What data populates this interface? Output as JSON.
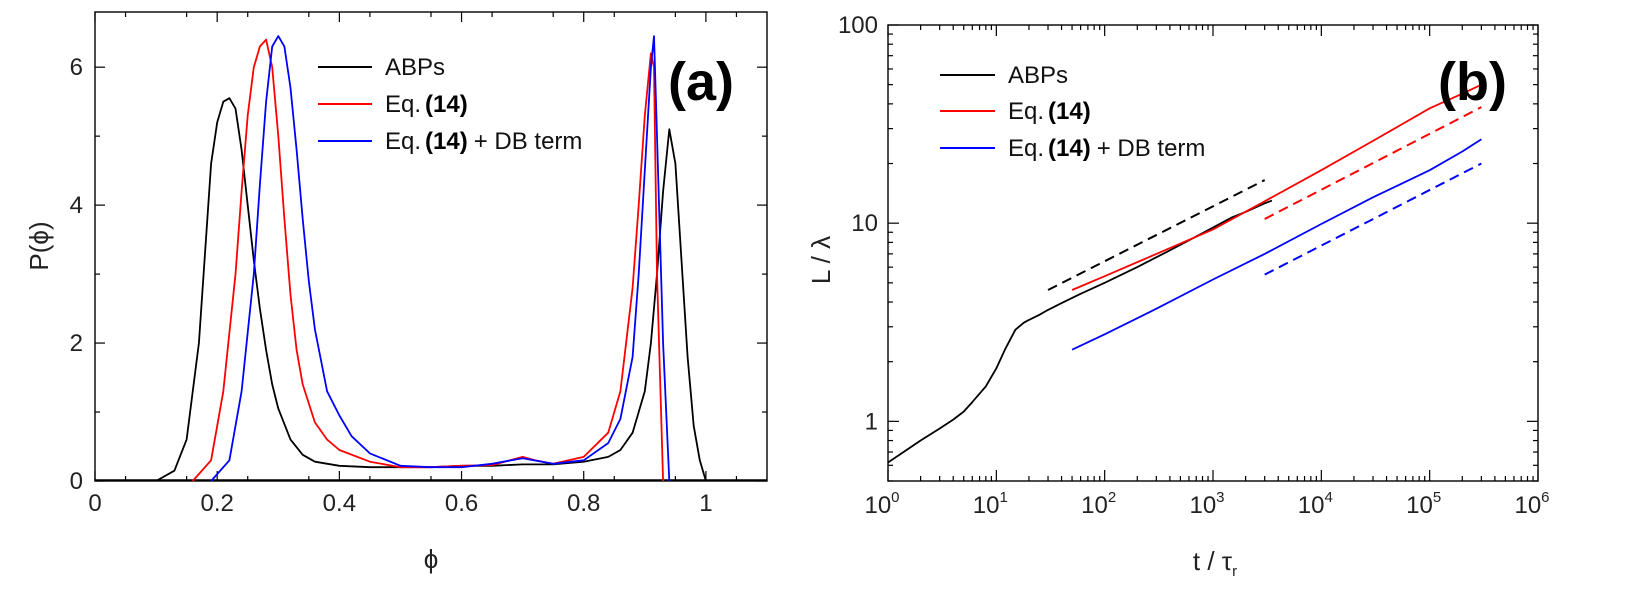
{
  "chart_data": [
    {
      "panel": "(a)",
      "type": "line",
      "xlabel": "ϕ",
      "ylabel": "P(ϕ)",
      "xlim": [
        0,
        1.1
      ],
      "ylim": [
        0,
        6.8
      ],
      "xticks": [
        0,
        0.2,
        0.4,
        0.6,
        0.8,
        1
      ],
      "xtick_labels": [
        "0",
        "0.2",
        "0.4",
        "0.6",
        "0.8",
        "1"
      ],
      "yticks": [
        0,
        2,
        4,
        6
      ],
      "ytick_labels": [
        "0",
        "2",
        "4",
        "6"
      ],
      "legend_position": "top-center",
      "series": [
        {
          "name": "ABPs",
          "color": "#000000",
          "x": [
            0.1,
            0.13,
            0.15,
            0.17,
            0.18,
            0.19,
            0.2,
            0.21,
            0.22,
            0.23,
            0.24,
            0.25,
            0.26,
            0.27,
            0.28,
            0.29,
            0.3,
            0.32,
            0.34,
            0.36,
            0.4,
            0.45,
            0.5,
            0.55,
            0.6,
            0.65,
            0.7,
            0.75,
            0.8,
            0.84,
            0.86,
            0.88,
            0.9,
            0.91,
            0.92,
            0.93,
            0.94,
            0.95,
            0.96,
            0.97,
            0.98,
            0.99,
            1.0
          ],
          "y": [
            0.0,
            0.15,
            0.6,
            2.0,
            3.3,
            4.6,
            5.2,
            5.5,
            5.55,
            5.4,
            4.8,
            4.0,
            3.2,
            2.5,
            1.9,
            1.4,
            1.05,
            0.6,
            0.38,
            0.28,
            0.22,
            0.2,
            0.2,
            0.2,
            0.22,
            0.22,
            0.24,
            0.24,
            0.28,
            0.35,
            0.45,
            0.7,
            1.3,
            2.0,
            3.0,
            4.2,
            5.1,
            4.6,
            3.2,
            1.8,
            0.8,
            0.3,
            0.0
          ]
        },
        {
          "name": "Eq.(14)",
          "color": "#ff0000",
          "x": [
            0.16,
            0.19,
            0.21,
            0.23,
            0.24,
            0.25,
            0.26,
            0.27,
            0.28,
            0.29,
            0.3,
            0.31,
            0.32,
            0.33,
            0.34,
            0.36,
            0.38,
            0.4,
            0.45,
            0.5,
            0.55,
            0.6,
            0.65,
            0.7,
            0.72,
            0.75,
            0.8,
            0.84,
            0.86,
            0.88,
            0.89,
            0.9,
            0.91,
            0.915,
            0.92,
            0.93
          ],
          "y": [
            0.0,
            0.3,
            1.3,
            3.0,
            4.2,
            5.3,
            6.0,
            6.3,
            6.4,
            6.0,
            5.0,
            3.8,
            2.7,
            1.9,
            1.4,
            0.85,
            0.6,
            0.45,
            0.28,
            0.2,
            0.2,
            0.22,
            0.23,
            0.35,
            0.3,
            0.25,
            0.35,
            0.7,
            1.3,
            2.8,
            4.0,
            5.3,
            6.2,
            6.0,
            3.0,
            0.0
          ]
        },
        {
          "name": "Eq.(14) + DB term",
          "color": "#0000ff",
          "x": [
            0.19,
            0.22,
            0.24,
            0.26,
            0.27,
            0.28,
            0.29,
            0.3,
            0.31,
            0.32,
            0.33,
            0.34,
            0.35,
            0.36,
            0.38,
            0.4,
            0.42,
            0.45,
            0.5,
            0.55,
            0.6,
            0.65,
            0.7,
            0.75,
            0.8,
            0.84,
            0.86,
            0.88,
            0.89,
            0.9,
            0.91,
            0.915,
            0.92,
            0.93,
            0.94
          ],
          "y": [
            0.0,
            0.3,
            1.3,
            3.0,
            4.3,
            5.5,
            6.3,
            6.45,
            6.3,
            5.7,
            4.8,
            3.8,
            2.9,
            2.2,
            1.3,
            0.95,
            0.65,
            0.4,
            0.22,
            0.2,
            0.2,
            0.25,
            0.33,
            0.25,
            0.3,
            0.55,
            0.9,
            1.8,
            3.0,
            4.5,
            6.0,
            6.45,
            5.0,
            2.0,
            0.0
          ]
        }
      ]
    },
    {
      "panel": "(b)",
      "type": "line",
      "xscale": "log",
      "yscale": "log",
      "xlabel": "t / τr",
      "ylabel": "L / λ",
      "xlim": [
        1,
        1000000
      ],
      "ylim": [
        0.5,
        100
      ],
      "xtick_exponents": [
        "0",
        "1",
        "2",
        "3",
        "4",
        "5",
        "6"
      ],
      "xtick_base": "10",
      "yticks": [
        1,
        10,
        100
      ],
      "ytick_labels": [
        "1",
        "10",
        "100"
      ],
      "legend_position": "top-left",
      "series": [
        {
          "name": "ABPs",
          "color": "#000000",
          "x": [
            1,
            1.5,
            2,
            3,
            4,
            5,
            6,
            8,
            10,
            12,
            15,
            18,
            20,
            25,
            30,
            40,
            60,
            100,
            200,
            400,
            800,
            1500,
            2000,
            3000,
            3500
          ],
          "y": [
            0.62,
            0.72,
            0.8,
            0.92,
            1.02,
            1.12,
            1.25,
            1.5,
            1.85,
            2.3,
            2.9,
            3.15,
            3.25,
            3.45,
            3.65,
            3.95,
            4.4,
            5.0,
            6.0,
            7.3,
            8.9,
            10.7,
            11.4,
            12.6,
            13.0
          ]
        },
        {
          "name": "Eq.(14)",
          "color": "#ff0000",
          "x": [
            50,
            100,
            300,
            1000,
            3000,
            10000,
            30000,
            100000,
            200000,
            300000
          ],
          "y": [
            4.6,
            5.4,
            7.0,
            9.3,
            12.9,
            18.5,
            26.0,
            38.0,
            45.0,
            50.0
          ]
        },
        {
          "name": "Eq.(14) + DB term",
          "color": "#0000ff",
          "x": [
            50,
            100,
            300,
            1000,
            3000,
            10000,
            30000,
            100000,
            200000,
            300000
          ],
          "y": [
            2.3,
            2.75,
            3.7,
            5.2,
            7.0,
            9.9,
            13.5,
            18.5,
            23.0,
            26.5
          ]
        }
      ],
      "guide_lines": [
        {
          "color": "#000000",
          "style": "dashed",
          "x": [
            30,
            3000
          ],
          "y": [
            4.6,
            16.5
          ]
        },
        {
          "color": "#ff0000",
          "style": "dashed",
          "x": [
            3000,
            300000
          ],
          "y": [
            10.5,
            38.5
          ]
        },
        {
          "color": "#0000ff",
          "style": "dashed",
          "x": [
            3000,
            300000
          ],
          "y": [
            5.5,
            20.0
          ]
        }
      ]
    }
  ],
  "legend": {
    "abps": "ABPs",
    "eq_prefix": "Eq.",
    "eq_number": "(14)",
    "db_suffix": "+ DB term"
  }
}
